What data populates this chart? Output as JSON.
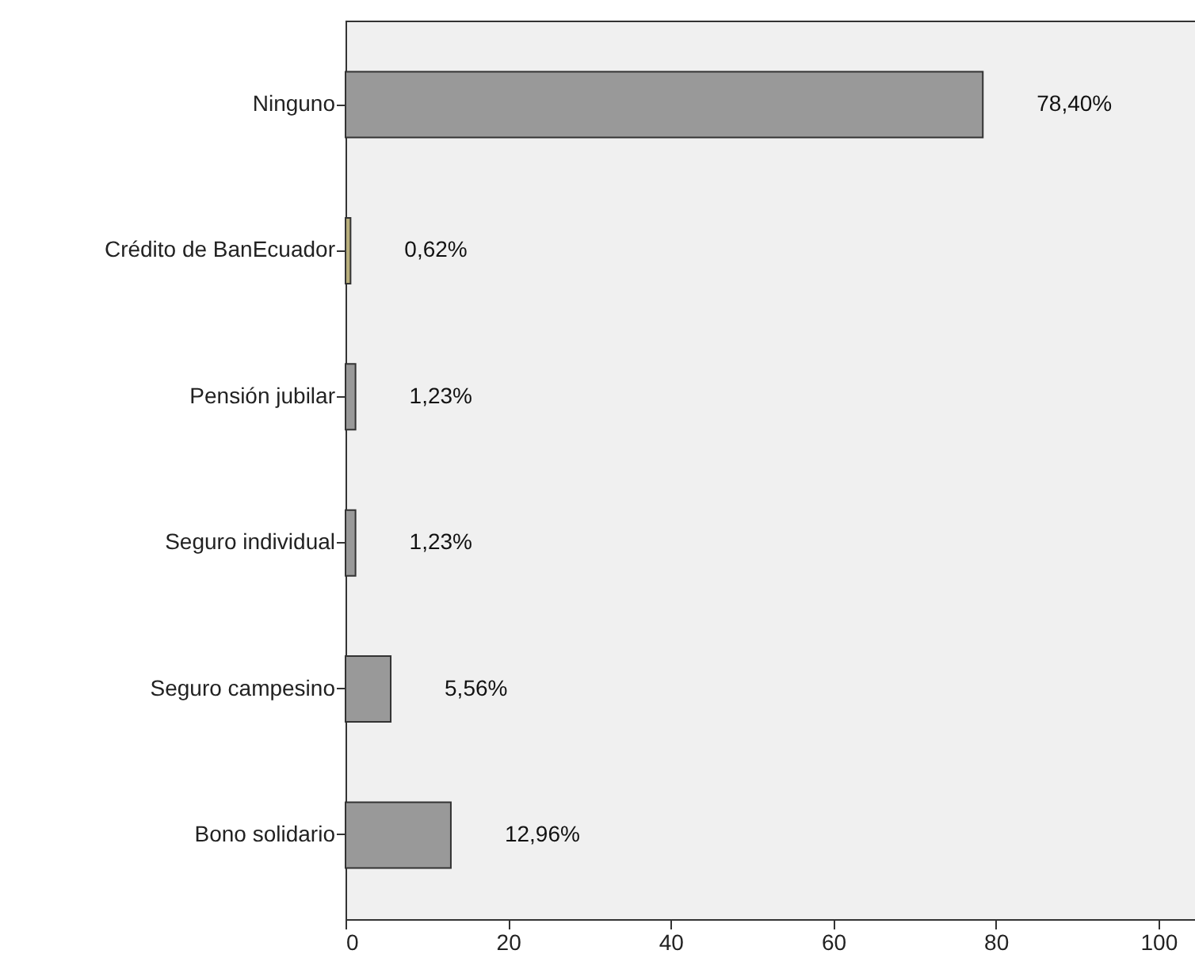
{
  "chart_data": {
    "type": "bar",
    "orientation": "horizontal",
    "categories": [
      "Ninguno",
      "Crédito de BanEcuador",
      "Pensión jubilar",
      "Seguro individual",
      "Seguro campesino",
      "Bono solidario"
    ],
    "values": [
      78.4,
      0.62,
      1.23,
      1.23,
      5.56,
      12.96
    ],
    "colors": [
      "#999999",
      "#b8ae7c",
      "#999999",
      "#999999",
      "#999999",
      "#999999"
    ],
    "value_labels": [
      "78,40%",
      "0,62%",
      "1,23%",
      "1,23%",
      "5,56%",
      "12,96%"
    ],
    "xlim": [
      0,
      104.5
    ],
    "xticks": [
      0,
      20,
      40,
      60,
      80,
      100
    ]
  }
}
